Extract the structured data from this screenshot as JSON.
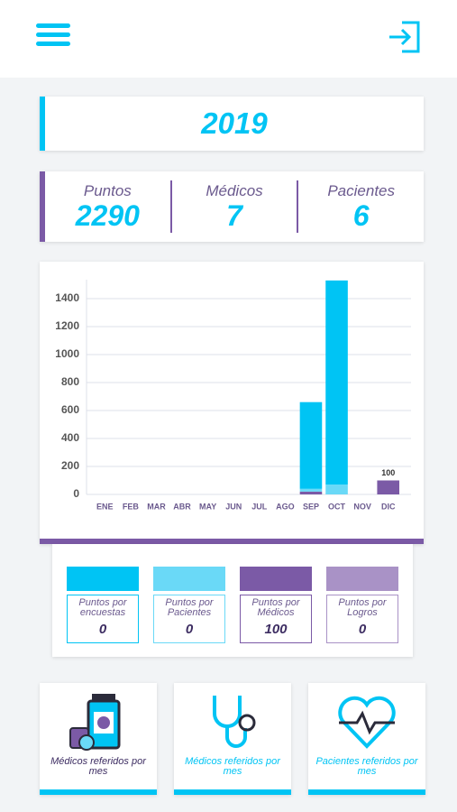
{
  "header": {
    "year": "2019"
  },
  "stats": [
    {
      "label": "Puntos",
      "value": 2290
    },
    {
      "label": "Médicos",
      "value": 7
    },
    {
      "label": "Pacientes",
      "value": 6
    }
  ],
  "chart_data": {
    "type": "bar",
    "stacked": true,
    "categories": [
      "ENE",
      "FEB",
      "MAR",
      "ABR",
      "MAY",
      "JUN",
      "JUL",
      "AGO",
      "SEP",
      "OCT",
      "NOV",
      "DIC"
    ],
    "series": [
      {
        "name": "Puntos por encuestas",
        "color": "#00c4f4",
        "values": [
          0,
          0,
          0,
          0,
          0,
          0,
          0,
          0,
          620,
          1460,
          0,
          0
        ],
        "total": 0
      },
      {
        "name": "Puntos por Pacientes",
        "color": "#6ad9f7",
        "values": [
          0,
          0,
          0,
          0,
          0,
          0,
          0,
          0,
          20,
          70,
          0,
          0
        ],
        "total": 0
      },
      {
        "name": "Puntos por Médicos",
        "color": "#7b5aa6",
        "values": [
          0,
          0,
          0,
          0,
          0,
          0,
          0,
          0,
          20,
          0,
          0,
          100
        ],
        "total": 100
      },
      {
        "name": "Puntos por Logros",
        "color": "#a992c6",
        "values": [
          0,
          0,
          0,
          0,
          0,
          0,
          0,
          0,
          0,
          0,
          0,
          0
        ],
        "total": 0
      }
    ],
    "ylim": [
      0,
      1500
    ],
    "yticks": [
      0,
      200,
      400,
      600,
      800,
      1000,
      1200,
      1400
    ],
    "grid": true
  },
  "cards": [
    {
      "label": "Médicos referidos por mes"
    },
    {
      "label": "Médicos referidos por mes"
    },
    {
      "label": "Pacientes referidos por mes"
    }
  ]
}
